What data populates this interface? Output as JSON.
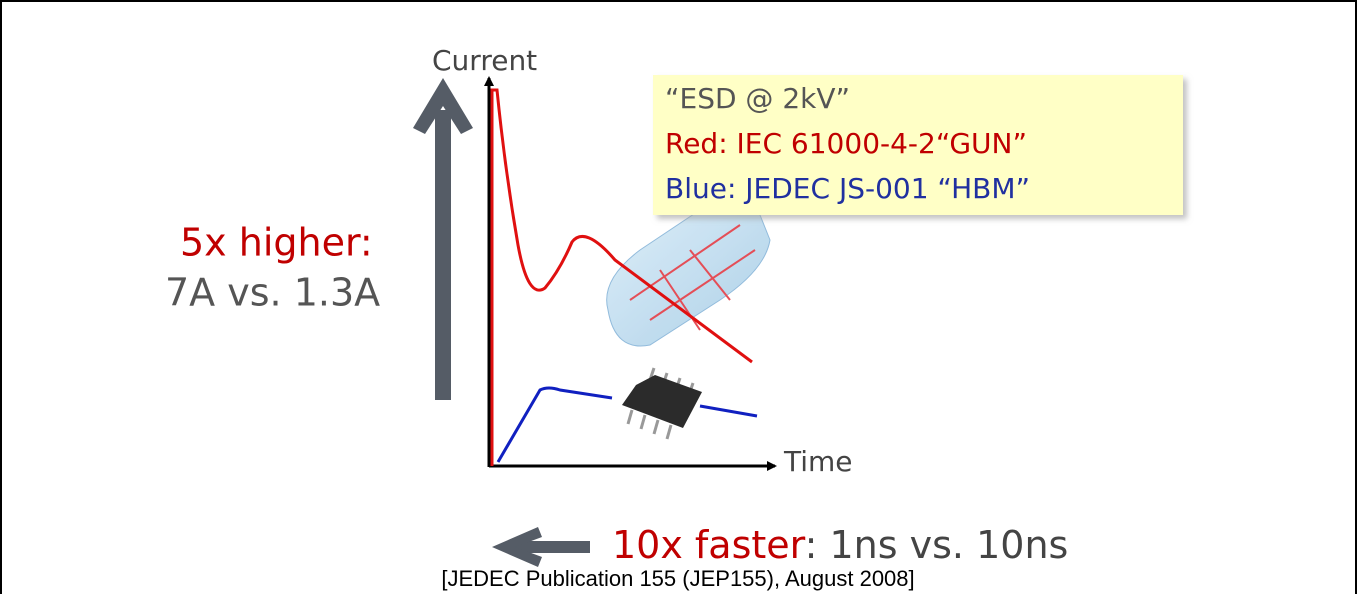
{
  "axes": {
    "y_label": "Current",
    "x_label": "Time"
  },
  "legend_box": {
    "title": "“ESD @ 2kV”",
    "red": "Red: IEC 61000-4-2“GUN”",
    "blue": "Blue: JEDEC JS-001 “HBM”"
  },
  "height_note": {
    "headline": "5x higher:",
    "detail": "7A vs. 1.3A"
  },
  "speed_note": {
    "headline": "10x faster",
    "detail": ": 1ns vs. 10ns"
  },
  "caption": "[JEDEC Publication 155 (JEP155), August 2008]"
}
